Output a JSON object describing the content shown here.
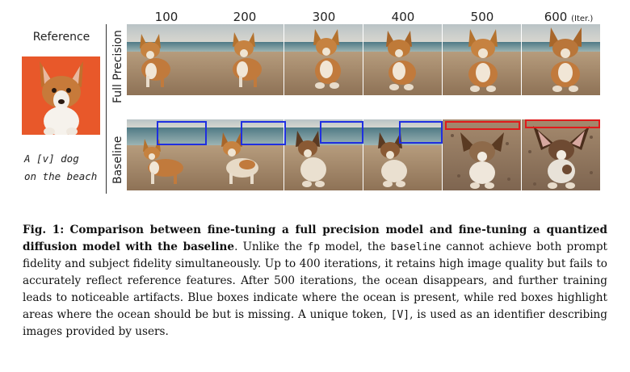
{
  "figure": {
    "iterations": [
      "100",
      "200",
      "300",
      "400",
      "500"
    ],
    "last_iteration": "600",
    "iter_unit": "(Iter.)",
    "reference_title": "Reference",
    "prompt_line1": "A [v] dog",
    "prompt_line2": "on the beach",
    "row_full_precision": "Full Precision",
    "row_baseline": "Baseline",
    "box_colors": {
      "blue": "#1f2fe0",
      "red": "#e01b1b"
    }
  },
  "caption": {
    "label": "Fig. 1:",
    "title": "Comparison between fine-tuning a full precision model and fine-tuning a quantized diffusion model with the baseline",
    "seg1": ". Unlike the ",
    "code_fp": "fp",
    "seg2": " model, the ",
    "code_baseline": "baseline",
    "seg3": " cannot achieve both prompt fidelity and subject fidelity simultaneously. Up to 400 iterations, it retains high image quality but fails to accurately reflect reference features. After 500 iterations, the ocean disappears, and further training leads to noticeable artifacts. Blue boxes indicate where the ocean is present, while red boxes highlight areas where the ocean should be but is missing. A unique token, ",
    "code_token": "[V]",
    "seg4": ", is used as an identifier describing images provided by users."
  }
}
